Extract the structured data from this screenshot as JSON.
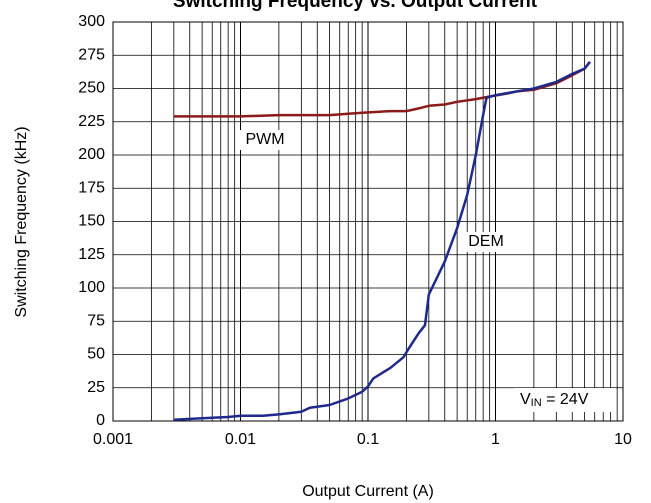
{
  "chart_data": {
    "type": "line",
    "title": "Switching Frequency vs. Output Current",
    "xlabel": "Output Current (A)",
    "ylabel": "Switching Frequency (kHz)",
    "xscale": "log",
    "xlim": [
      0.001,
      10
    ],
    "ylim": [
      0,
      300
    ],
    "xticks": [
      0.001,
      0.01,
      0.1,
      1,
      10
    ],
    "xgrid_minor": [
      0.002,
      0.003,
      0.004,
      0.005,
      0.006,
      0.007,
      0.008,
      0.009,
      0.02,
      0.03,
      0.04,
      0.05,
      0.06,
      0.07,
      0.08,
      0.09,
      0.2,
      0.3,
      0.4,
      0.5,
      0.6,
      0.7,
      0.8,
      0.9,
      2,
      3,
      4,
      5,
      6,
      7,
      8,
      9
    ],
    "yticks": [
      0,
      25,
      50,
      75,
      100,
      125,
      150,
      175,
      200,
      225,
      250,
      275,
      300
    ],
    "grid": true,
    "series": [
      {
        "name": "PWM",
        "color": "#8b1a1a",
        "x": [
          0.003,
          0.01,
          0.02,
          0.05,
          0.07,
          0.1,
          0.15,
          0.2,
          0.25,
          0.3,
          0.4,
          0.5,
          0.7,
          0.9,
          1.2,
          1.5,
          2,
          3,
          4,
          5,
          5.5
        ],
        "values": [
          229,
          229,
          230,
          230,
          231,
          232,
          233,
          233,
          235,
          237,
          238,
          240,
          242,
          244,
          246,
          248,
          249,
          254,
          260,
          265,
          270
        ]
      },
      {
        "name": "DEM",
        "color": "#1f2a8c",
        "x": [
          0.003,
          0.005,
          0.008,
          0.01,
          0.015,
          0.02,
          0.03,
          0.035,
          0.05,
          0.07,
          0.09,
          0.1,
          0.11,
          0.15,
          0.19,
          0.21,
          0.25,
          0.28,
          0.3,
          0.4,
          0.5,
          0.6,
          0.7,
          0.8,
          0.85,
          1,
          1.5,
          2,
          3,
          4,
          5,
          5.5
        ],
        "values": [
          1,
          2,
          3,
          4,
          4,
          5,
          7,
          10,
          12,
          17,
          22,
          26,
          32,
          40,
          48,
          55,
          66,
          72,
          95,
          120,
          145,
          170,
          200,
          230,
          243,
          245,
          248,
          250,
          255,
          261,
          265,
          270
        ]
      }
    ],
    "vin_label": {
      "main": "V",
      "sub": "IN",
      "tail": " = 24V"
    }
  }
}
